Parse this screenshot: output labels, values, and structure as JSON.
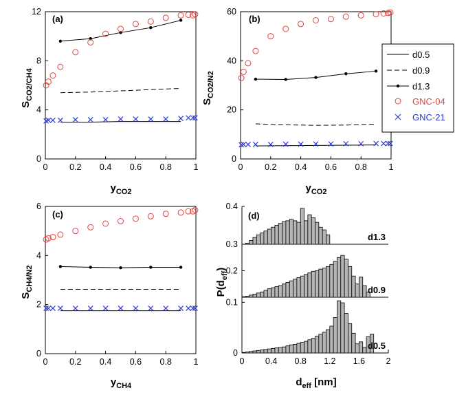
{
  "figure": {
    "panels": [
      "(a)",
      "(b)",
      "(c)",
      "(d)"
    ]
  },
  "colors": {
    "gnc04": "#e8413c",
    "gnc21": "#2b39d6",
    "line": "#000000",
    "bar_fill": "#b5b5b5"
  },
  "legend": {
    "placement": "right of panel (b)",
    "entries": [
      {
        "label": "d0.5",
        "style": "solid"
      },
      {
        "label": "d0.9",
        "style": "dashed"
      },
      {
        "label": "d1.3",
        "style": "solid-dot"
      },
      {
        "label": "GNC-04",
        "style": "circle"
      },
      {
        "label": "GNC-21",
        "style": "cross"
      }
    ]
  },
  "chart_data": [
    {
      "panel": "(a)",
      "type": "scatter",
      "ylabel_main": "S",
      "ylabel_sub": "CO2/CH4",
      "xlabel_main": "y",
      "xlabel_sub": "CO2",
      "xlim": [
        0,
        1
      ],
      "ylim": [
        0,
        12
      ],
      "xticks": [
        "0",
        "0.2",
        "0.4",
        "0.6",
        "0.8",
        "1"
      ],
      "yticks": [
        "0",
        "4",
        "8",
        "12"
      ],
      "series": [
        {
          "name": "d0.5",
          "style": "solid",
          "x": [
            0.1,
            0.3,
            0.5,
            0.7,
            0.9
          ],
          "y": [
            3.0,
            3.0,
            3.05,
            3.05,
            3.05
          ]
        },
        {
          "name": "d0.9",
          "style": "dashed",
          "x": [
            0.1,
            0.3,
            0.5,
            0.7,
            0.9
          ],
          "y": [
            5.4,
            5.45,
            5.55,
            5.65,
            5.75
          ]
        },
        {
          "name": "d1.3",
          "style": "solid-dot",
          "x": [
            0.1,
            0.3,
            0.5,
            0.7,
            0.9
          ],
          "y": [
            9.6,
            9.8,
            10.3,
            10.7,
            11.3
          ]
        },
        {
          "name": "GNC-04",
          "style": "circle",
          "x": [
            0.005,
            0.02,
            0.05,
            0.1,
            0.2,
            0.3,
            0.4,
            0.5,
            0.6,
            0.7,
            0.8,
            0.9,
            0.95,
            0.98,
            0.995
          ],
          "y": [
            6.0,
            6.3,
            6.8,
            7.5,
            8.7,
            9.5,
            10.2,
            10.6,
            11.0,
            11.2,
            11.5,
            11.7,
            11.75,
            11.7,
            11.8
          ]
        },
        {
          "name": "GNC-21",
          "style": "cross",
          "x": [
            0.005,
            0.02,
            0.05,
            0.1,
            0.2,
            0.3,
            0.4,
            0.5,
            0.6,
            0.7,
            0.8,
            0.9,
            0.95,
            0.98,
            0.995
          ],
          "y": [
            3.1,
            3.15,
            3.15,
            3.15,
            3.2,
            3.2,
            3.2,
            3.25,
            3.25,
            3.25,
            3.25,
            3.3,
            3.35,
            3.35,
            3.35
          ]
        }
      ]
    },
    {
      "panel": "(b)",
      "type": "scatter",
      "ylabel_main": "S",
      "ylabel_sub": "CO2/N2",
      "xlabel_main": "y",
      "xlabel_sub": "CO2",
      "xlim": [
        0,
        1
      ],
      "ylim": [
        0,
        60
      ],
      "xticks": [
        "0",
        "0.2",
        "0.4",
        "0.6",
        "0.8",
        "1"
      ],
      "yticks": [
        "0",
        "20",
        "40",
        "60"
      ],
      "series": [
        {
          "name": "d0.5",
          "style": "solid",
          "x": [
            0.1,
            0.3,
            0.5,
            0.7,
            0.9
          ],
          "y": [
            5.3,
            5.4,
            5.5,
            5.6,
            5.7
          ]
        },
        {
          "name": "d0.9",
          "style": "dashed",
          "x": [
            0.1,
            0.3,
            0.5,
            0.7,
            0.9
          ],
          "y": [
            14.3,
            13.9,
            13.7,
            13.8,
            14.2
          ]
        },
        {
          "name": "d1.3",
          "style": "solid-dot",
          "x": [
            0.1,
            0.3,
            0.5,
            0.7,
            0.9
          ],
          "y": [
            32.5,
            32.4,
            33.2,
            34.7,
            35.8
          ]
        },
        {
          "name": "GNC-04",
          "style": "circle",
          "x": [
            0.005,
            0.02,
            0.05,
            0.1,
            0.2,
            0.3,
            0.4,
            0.5,
            0.6,
            0.7,
            0.8,
            0.9,
            0.95,
            0.98,
            0.995
          ],
          "y": [
            33.0,
            35.5,
            39.0,
            44.0,
            50.0,
            53.0,
            55.0,
            56.5,
            57.0,
            58.0,
            58.5,
            59.0,
            59.3,
            59.5,
            59.7
          ]
        },
        {
          "name": "GNC-21",
          "style": "cross",
          "x": [
            0.005,
            0.02,
            0.05,
            0.1,
            0.2,
            0.3,
            0.4,
            0.5,
            0.6,
            0.7,
            0.8,
            0.9,
            0.95,
            0.98,
            0.995
          ],
          "y": [
            5.8,
            5.9,
            5.9,
            5.9,
            5.9,
            6.0,
            6.0,
            6.1,
            6.1,
            6.2,
            6.2,
            6.3,
            6.3,
            6.3,
            6.3
          ]
        }
      ]
    },
    {
      "panel": "(c)",
      "type": "scatter",
      "ylabel_main": "S",
      "ylabel_sub": "CH4/N2",
      "xlabel_main": "y",
      "xlabel_sub": "CH4",
      "xlim": [
        0,
        1
      ],
      "ylim": [
        0,
        6
      ],
      "xticks": [
        "0",
        "0.2",
        "0.4",
        "0.6",
        "0.8",
        "1"
      ],
      "yticks": [
        "0",
        "2",
        "4",
        "6"
      ],
      "series": [
        {
          "name": "d0.5",
          "style": "solid",
          "x": [
            0.1,
            0.3,
            0.5,
            0.7,
            0.9
          ],
          "y": [
            1.75,
            1.75,
            1.75,
            1.75,
            1.75
          ]
        },
        {
          "name": "d0.9",
          "style": "dashed",
          "x": [
            0.1,
            0.3,
            0.5,
            0.7,
            0.9
          ],
          "y": [
            2.62,
            2.62,
            2.62,
            2.62,
            2.62
          ]
        },
        {
          "name": "d1.3",
          "style": "solid-dot",
          "x": [
            0.1,
            0.3,
            0.5,
            0.7,
            0.9
          ],
          "y": [
            3.55,
            3.52,
            3.5,
            3.52,
            3.52
          ]
        },
        {
          "name": "GNC-04",
          "style": "circle",
          "x": [
            0.005,
            0.02,
            0.05,
            0.1,
            0.2,
            0.3,
            0.4,
            0.5,
            0.6,
            0.7,
            0.8,
            0.9,
            0.95,
            0.98,
            0.995
          ],
          "y": [
            4.65,
            4.7,
            4.75,
            4.85,
            5.0,
            5.15,
            5.3,
            5.4,
            5.5,
            5.6,
            5.7,
            5.75,
            5.8,
            5.8,
            5.85
          ]
        },
        {
          "name": "GNC-21",
          "style": "cross",
          "x": [
            0.005,
            0.02,
            0.05,
            0.1,
            0.2,
            0.3,
            0.4,
            0.5,
            0.6,
            0.7,
            0.8,
            0.9,
            0.95,
            0.98,
            0.995
          ],
          "y": [
            1.85,
            1.85,
            1.85,
            1.85,
            1.85,
            1.85,
            1.85,
            1.85,
            1.85,
            1.85,
            1.85,
            1.85,
            1.85,
            1.85,
            1.85
          ]
        }
      ]
    },
    {
      "panel": "(d)",
      "type": "bar",
      "ylabel_main": "P(d",
      "ylabel_sub": "eff",
      "ylabel_tail": ")",
      "xlabel_main": "d",
      "xlabel_sub": "eff",
      "xlabel_tail": " [nm]",
      "xlim": [
        0,
        2
      ],
      "xticks": [
        "0",
        "0.4",
        "0.8",
        "1.2",
        "1.6",
        "2"
      ],
      "bin_width": 0.05,
      "subplots": [
        {
          "name": "d1.3",
          "ylim": [
            0.3,
            0.4
          ],
          "yticks": [
            "0.3",
            "0.4"
          ],
          "bin_start": 0.05,
          "values": [
            0.303,
            0.31,
            0.318,
            0.325,
            0.33,
            0.335,
            0.34,
            0.345,
            0.35,
            0.355,
            0.36,
            0.362,
            0.366,
            0.362,
            0.358,
            0.395,
            0.362,
            0.378,
            0.37,
            0.358,
            0.345,
            0.338,
            0.325
          ]
        },
        {
          "name": "d0.9",
          "ylim": [
            0.15,
            0.25
          ],
          "yticks": [
            "0.2"
          ],
          "bin_start": 0.0,
          "values": [
            0.151,
            0.152,
            0.154,
            0.156,
            0.158,
            0.16,
            0.163,
            0.166,
            0.168,
            0.17,
            0.172,
            0.175,
            0.178,
            0.181,
            0.184,
            0.187,
            0.19,
            0.193,
            0.196,
            0.199,
            0.2,
            0.203,
            0.205,
            0.208,
            0.212,
            0.218,
            0.225,
            0.229,
            0.222,
            0.208,
            0.19,
            0.175,
            0.188,
            0.172,
            0.16
          ]
        },
        {
          "name": "d0.5",
          "ylim": [
            0.0,
            0.11
          ],
          "yticks": [
            "0",
            "0.1"
          ],
          "bin_start": 0.0,
          "values": [
            0.001,
            0.002,
            0.003,
            0.004,
            0.005,
            0.006,
            0.007,
            0.008,
            0.009,
            0.01,
            0.011,
            0.012,
            0.014,
            0.016,
            0.017,
            0.019,
            0.021,
            0.023,
            0.026,
            0.029,
            0.033,
            0.037,
            0.041,
            0.046,
            0.053,
            0.07,
            0.103,
            0.099,
            0.078,
            0.058,
            0.039,
            0.018,
            0.022,
            0.011,
            0.032,
            0.037
          ]
        }
      ]
    }
  ]
}
